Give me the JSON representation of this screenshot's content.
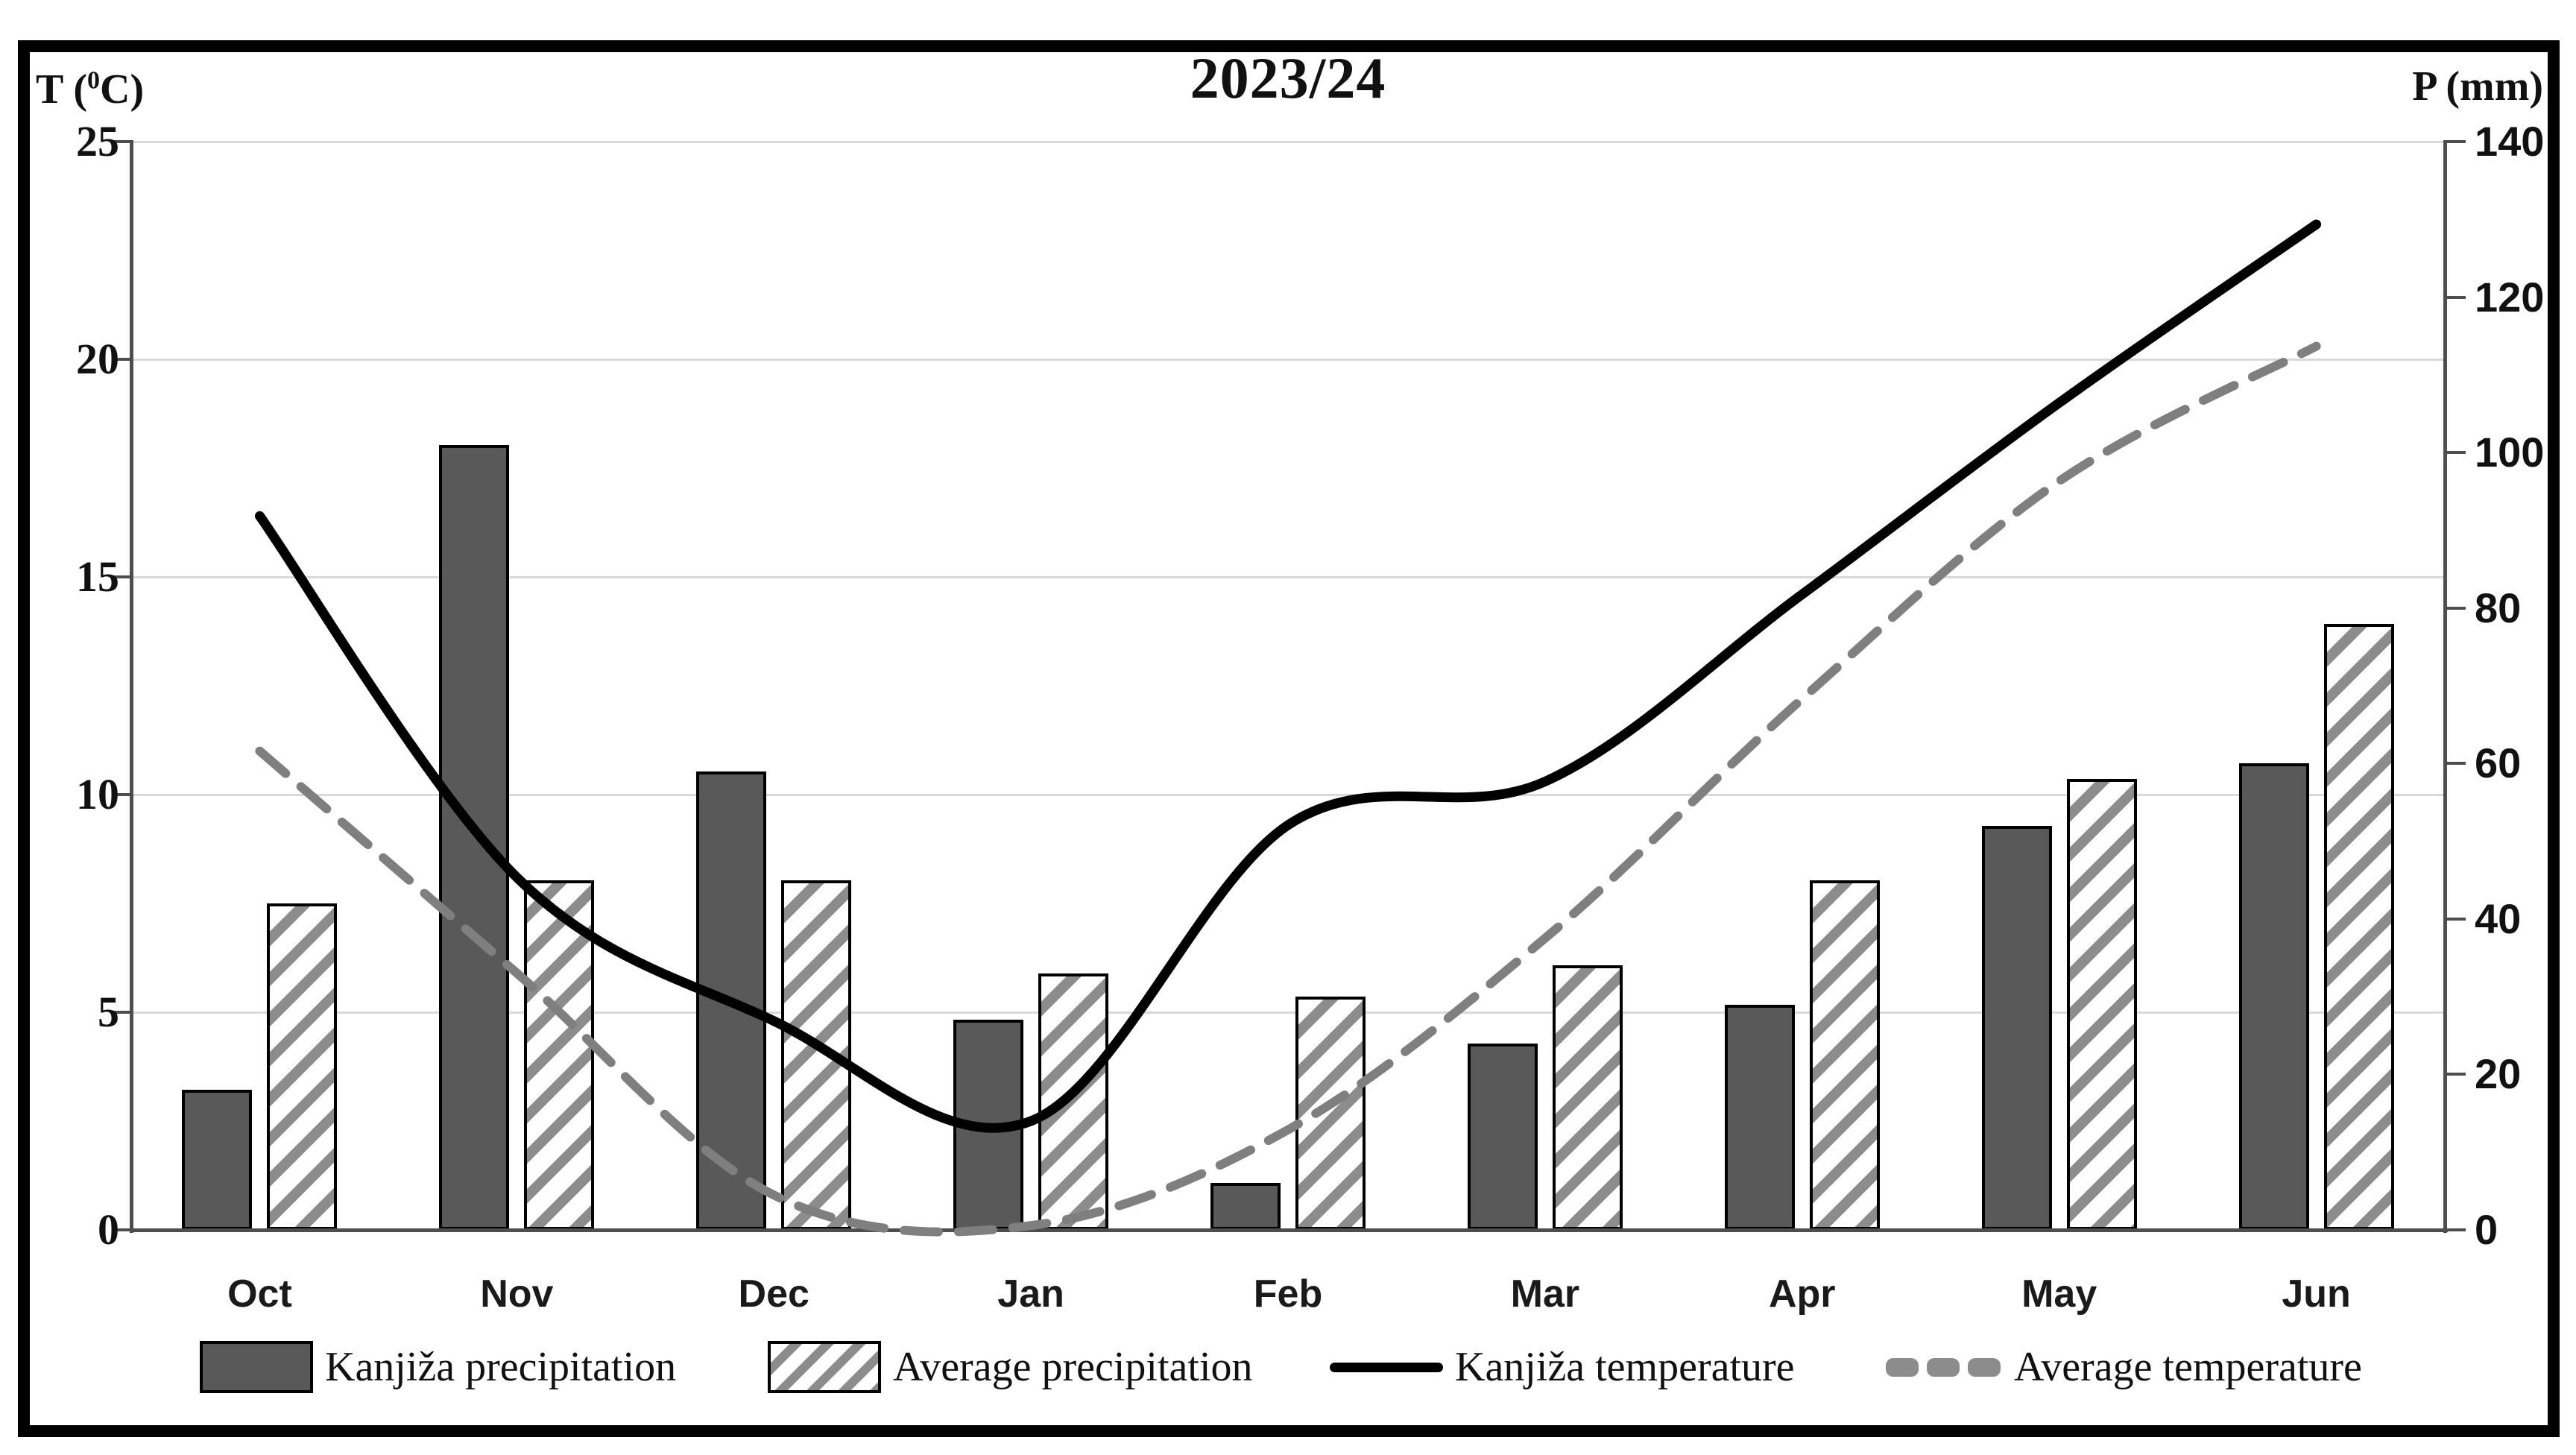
{
  "title": "2023/24",
  "axes": {
    "left_title": {
      "pre": "T (",
      "sup": "0",
      "post": "C)"
    },
    "right_title": "P (mm)"
  },
  "legend": {
    "items": [
      {
        "label": "Kanjiža precipitation",
        "swatch": "bar-solid"
      },
      {
        "label": "Average precipitation",
        "swatch": "bar-hatched"
      },
      {
        "label": "Kanjiža temperature",
        "swatch": "line-solid"
      },
      {
        "label": "Average temperature",
        "swatch": "line-dashed"
      }
    ]
  },
  "chart_data": {
    "type": "combo",
    "subtype": "climograph (bars = precipitation, smooth lines = temperature)",
    "title": "2023/24",
    "categories": [
      "Oct",
      "Nov",
      "Dec",
      "Jan",
      "Feb",
      "Mar",
      "Apr",
      "May",
      "Jun"
    ],
    "series": [
      {
        "name": "Kanjiža precipitation",
        "type": "bar",
        "axis": "right",
        "unit": "mm",
        "style": "solid-dark-gray",
        "values": [
          18,
          101,
          59,
          27,
          6,
          24,
          29,
          52,
          60
        ]
      },
      {
        "name": "Average precipitation",
        "type": "bar",
        "axis": "right",
        "unit": "mm",
        "style": "white-diagonal-hatch",
        "values": [
          42,
          45,
          45,
          33,
          30,
          34,
          45,
          58,
          78
        ]
      },
      {
        "name": "Kanjiža temperature",
        "type": "line",
        "axis": "left",
        "unit": "0C",
        "style": "solid-black-smooth",
        "values": [
          16.4,
          8.1,
          4.8,
          2.5,
          9.3,
          10.3,
          14.6,
          19.0,
          23.1
        ]
      },
      {
        "name": "Average temperature",
        "type": "line",
        "axis": "left",
        "unit": "0C",
        "style": "dashed-gray-smooth",
        "values": [
          11.0,
          5.9,
          0.8,
          0.1,
          2.3,
          6.7,
          12.2,
          17.2,
          20.3
        ]
      }
    ],
    "left_axis": {
      "label": "T (0C)",
      "min": 0,
      "max": 25,
      "step": 5,
      "ticks": [
        25,
        20,
        15,
        10,
        5,
        0
      ]
    },
    "right_axis": {
      "label": "P (mm)",
      "min": 0,
      "max": 140,
      "step": 20,
      "ticks": [
        140,
        120,
        100,
        80,
        60,
        40,
        20,
        0
      ]
    },
    "grid": "horizontal-on",
    "legend_position": "bottom"
  },
  "colors": {
    "bar_fill": "#595959",
    "hatch_stroke": "#8c8c8c",
    "line_black": "#000000",
    "line_gray": "#7f7f7f",
    "gridline": "#d9d9d9",
    "axis_line": "#4d4d4d",
    "frame": "#000000",
    "background": "#ffffff"
  }
}
